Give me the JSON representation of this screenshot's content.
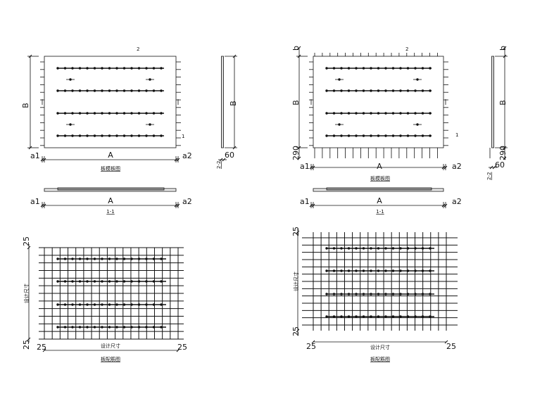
{
  "colors": {
    "line": "#111111",
    "background": "#ffffff"
  },
  "left_sheet": {
    "plan": {
      "caption": "板模板图",
      "dim_a1": "a1",
      "dim_A": "A",
      "dim_a2": "a2",
      "dim_B": "B",
      "mark_1": "1",
      "mark_2": "2"
    },
    "section_2_2": {
      "caption": "2-2",
      "dim_B": "B",
      "dim_thick": "60"
    },
    "section_1_1": {
      "caption": "1-1",
      "dim_a1": "a1",
      "dim_A": "A",
      "dim_a2": "a2"
    },
    "rebar": {
      "caption": "板配筋图",
      "dim_top": "25",
      "dim_bottom": "25",
      "dim_left": "25",
      "dim_right": "25",
      "dim_vertical": "设计尺寸",
      "dim_horizontal": "设计尺寸"
    }
  },
  "right_sheet": {
    "plan": {
      "caption": "板模板图",
      "dim_a1": "a1",
      "dim_A": "A",
      "dim_a2": "a2",
      "dim_b": "b",
      "dim_B": "B",
      "dim_290": "290",
      "mark_1": "1",
      "mark_2": "2"
    },
    "section_2_2": {
      "caption": "2-2",
      "dim_b": "b",
      "dim_B": "B",
      "dim_290": "290",
      "dim_thick": "60"
    },
    "section_1_1": {
      "caption": "1-1",
      "dim_a1": "a1",
      "dim_A": "A",
      "dim_a2": "a2"
    },
    "rebar": {
      "caption": "板配筋图",
      "dim_top": "25",
      "dim_bottom": "25",
      "dim_left": "25",
      "dim_right": "25",
      "dim_vertical": "设计尺寸",
      "dim_horizontal": "设计尺寸"
    }
  }
}
